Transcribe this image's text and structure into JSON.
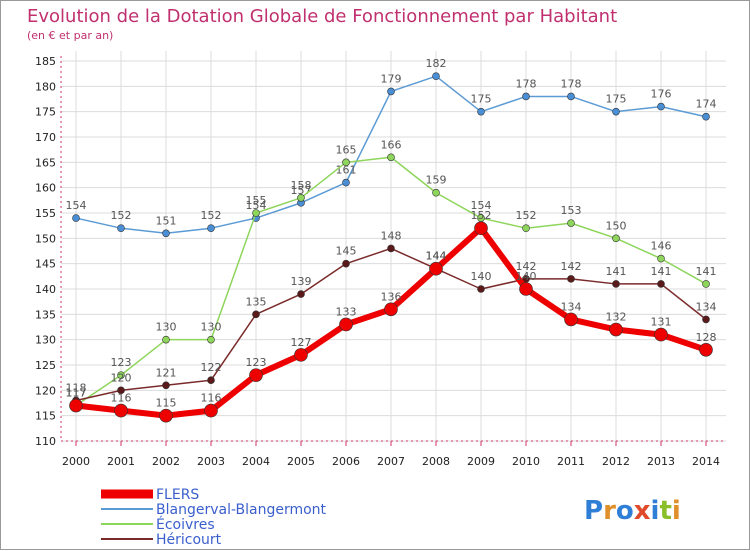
{
  "chart_data": {
    "type": "line",
    "title": "Evolution de la Dotation Globale de Fonctionnement par Habitant",
    "subtitle": "(en € et par an)",
    "x": [
      "2000",
      "2001",
      "2002",
      "2003",
      "2004",
      "2005",
      "2006",
      "2007",
      "2008",
      "2009",
      "2010",
      "2011",
      "2012",
      "2013",
      "2014"
    ],
    "yticks": [
      "110",
      "115",
      "120",
      "125",
      "130",
      "135",
      "140",
      "145",
      "150",
      "155",
      "160",
      "165",
      "170",
      "175",
      "180",
      "185"
    ],
    "ylim": [
      110,
      185
    ],
    "grid": true,
    "legend_position": "bottom-left",
    "series": [
      {
        "name": "Blangerval-Blangermont",
        "color": "#5b9bd5",
        "values": [
          154,
          152,
          151,
          152,
          154,
          157,
          161,
          179,
          182,
          175,
          178,
          178,
          175,
          176,
          174
        ],
        "labels": [
          "154",
          "152",
          "151",
          "152",
          "154",
          "157",
          "161",
          "179",
          "182",
          "175",
          "178",
          "178",
          "175",
          "176",
          "174"
        ]
      },
      {
        "name": "Écoivres",
        "color": "#8ed55b",
        "values": [
          117,
          123,
          130,
          130,
          155,
          158,
          165,
          166,
          159,
          154,
          152,
          153,
          150,
          146,
          141
        ],
        "labels": [
          "117",
          "123",
          "130",
          "130",
          "155",
          "158",
          "165",
          "166",
          "159",
          "154",
          "152",
          "153",
          "150",
          "146",
          "141"
        ]
      },
      {
        "name": "Héricourt",
        "color": "#7a2a2a",
        "values": [
          118,
          120,
          121,
          122,
          135,
          139,
          145,
          148,
          144,
          140,
          142,
          142,
          141,
          141,
          134
        ],
        "labels": [
          "118",
          "120",
          "121",
          "122",
          "135",
          "139",
          "145",
          "148",
          "144",
          "140",
          "142",
          "142",
          "141",
          "141",
          "134"
        ]
      },
      {
        "name": "FLERS",
        "color": "#ee0000",
        "values": [
          117,
          116,
          115,
          116,
          123,
          127,
          133,
          136,
          144,
          152,
          140,
          134,
          132,
          131,
          128
        ],
        "labels": [
          "117",
          "116",
          "115",
          "116",
          "123",
          "127",
          "133",
          "136",
          "144",
          "152",
          "140",
          "134",
          "132",
          "131",
          "128"
        ]
      }
    ]
  },
  "branding": {
    "logo_text": "Proxiti"
  }
}
